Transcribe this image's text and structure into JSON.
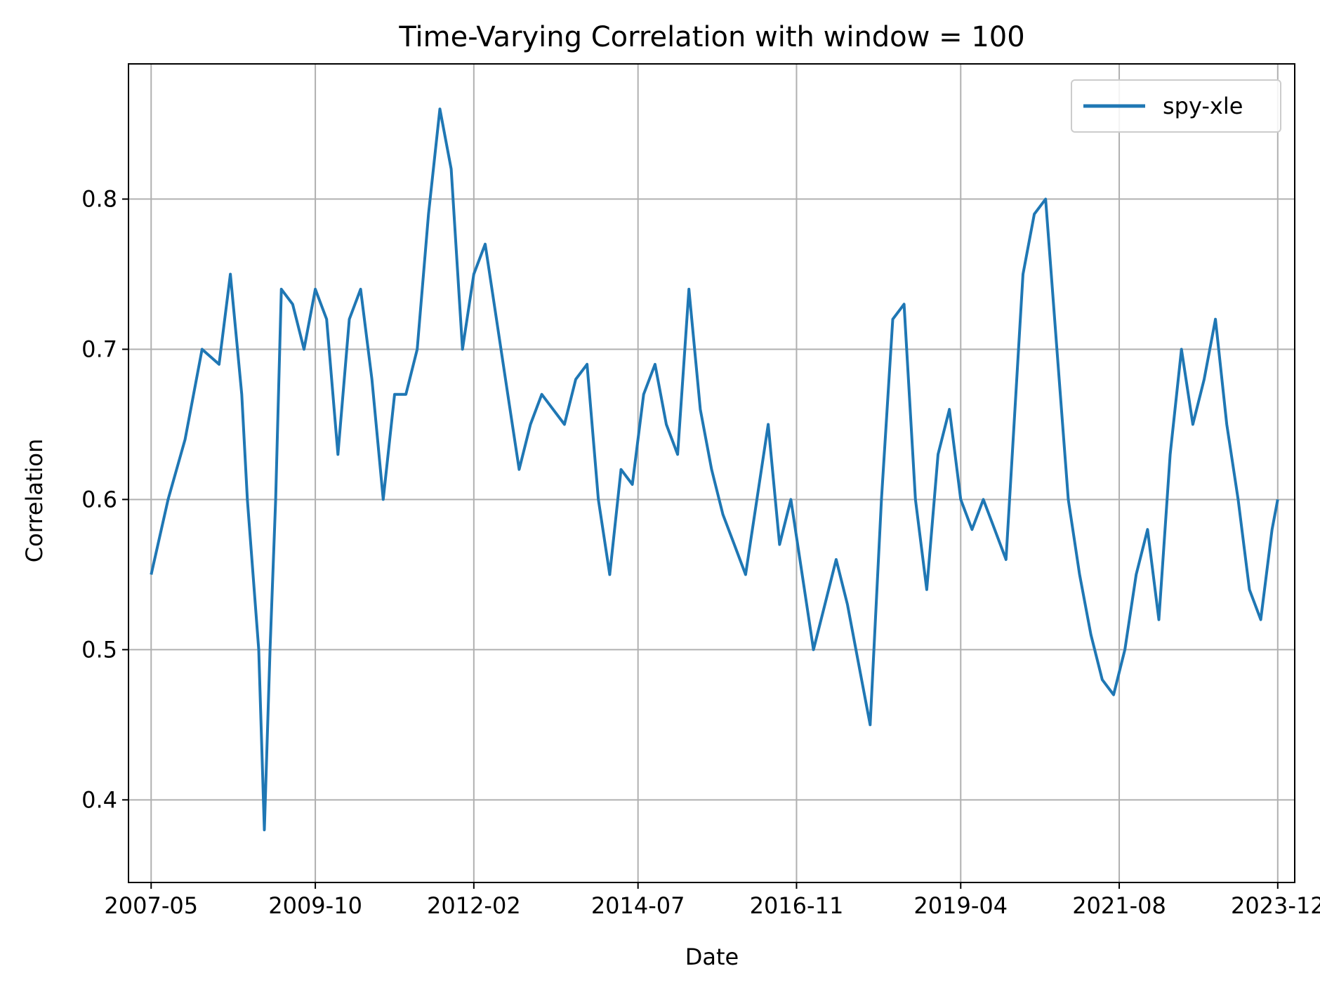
{
  "chart_data": {
    "type": "line",
    "title": "Time-Varying Correlation with window = 100",
    "xlabel": "Date",
    "ylabel": "Correlation",
    "x_tick_labels": [
      "2007-05",
      "2009-10",
      "2012-02",
      "2014-07",
      "2016-11",
      "2019-04",
      "2021-08",
      "2023-12"
    ],
    "y_tick_labels": [
      "0.4",
      "0.5",
      "0.6",
      "0.7",
      "0.8"
    ],
    "y_ticks": [
      0.4,
      0.5,
      0.6,
      0.7,
      0.8
    ],
    "xlim": [
      "2007-01",
      "2024-03"
    ],
    "ylim": [
      0.345,
      0.89
    ],
    "grid": true,
    "legend_position": "upper right",
    "series": [
      {
        "name": "spy-xle",
        "color": "#1f77b4",
        "x": [
          "2007-05",
          "2007-08",
          "2007-11",
          "2008-02",
          "2008-05",
          "2008-07",
          "2008-09",
          "2008-10",
          "2008-11",
          "2008-12",
          "2009-01",
          "2009-02",
          "2009-03",
          "2009-04",
          "2009-06",
          "2009-08",
          "2009-10",
          "2009-12",
          "2010-02",
          "2010-04",
          "2010-06",
          "2010-08",
          "2010-10",
          "2010-12",
          "2011-02",
          "2011-04",
          "2011-06",
          "2011-08",
          "2011-10",
          "2011-12",
          "2012-02",
          "2012-04",
          "2012-06",
          "2012-08",
          "2012-10",
          "2012-12",
          "2013-02",
          "2013-04",
          "2013-06",
          "2013-08",
          "2013-10",
          "2013-12",
          "2014-02",
          "2014-04",
          "2014-06",
          "2014-08",
          "2014-10",
          "2014-12",
          "2015-02",
          "2015-04",
          "2015-06",
          "2015-08",
          "2015-10",
          "2015-12",
          "2016-02",
          "2016-04",
          "2016-06",
          "2016-08",
          "2016-10",
          "2016-12",
          "2017-02",
          "2017-04",
          "2017-06",
          "2017-08",
          "2017-10",
          "2017-12",
          "2018-02",
          "2018-04",
          "2018-06",
          "2018-08",
          "2018-10",
          "2018-12",
          "2019-02",
          "2019-04",
          "2019-06",
          "2019-08",
          "2019-10",
          "2019-12",
          "2020-03",
          "2020-05",
          "2020-07",
          "2020-09",
          "2020-11",
          "2021-01",
          "2021-03",
          "2021-05",
          "2021-07",
          "2021-09",
          "2021-11",
          "2022-01",
          "2022-03",
          "2022-05",
          "2022-07",
          "2022-09",
          "2022-11",
          "2023-01",
          "2023-03",
          "2023-05",
          "2023-07",
          "2023-09",
          "2023-11",
          "2023-12"
        ],
        "values": [
          0.55,
          0.6,
          0.64,
          0.7,
          0.69,
          0.75,
          0.67,
          0.6,
          0.55,
          0.5,
          0.38,
          0.5,
          0.6,
          0.74,
          0.73,
          0.7,
          0.74,
          0.72,
          0.63,
          0.72,
          0.74,
          0.68,
          0.6,
          0.67,
          0.67,
          0.7,
          0.79,
          0.86,
          0.82,
          0.7,
          0.75,
          0.77,
          0.72,
          0.67,
          0.62,
          0.65,
          0.67,
          0.66,
          0.65,
          0.68,
          0.69,
          0.6,
          0.55,
          0.62,
          0.61,
          0.67,
          0.69,
          0.65,
          0.63,
          0.74,
          0.66,
          0.62,
          0.59,
          0.57,
          0.55,
          0.6,
          0.65,
          0.57,
          0.6,
          0.55,
          0.5,
          0.53,
          0.56,
          0.53,
          0.49,
          0.45,
          0.6,
          0.72,
          0.73,
          0.6,
          0.54,
          0.63,
          0.66,
          0.6,
          0.58,
          0.6,
          0.58,
          0.56,
          0.75,
          0.79,
          0.8,
          0.7,
          0.6,
          0.55,
          0.51,
          0.48,
          0.47,
          0.5,
          0.55,
          0.58,
          0.52,
          0.63,
          0.7,
          0.65,
          0.68,
          0.72,
          0.65,
          0.6,
          0.54,
          0.52,
          0.58,
          0.6
        ]
      }
    ]
  }
}
